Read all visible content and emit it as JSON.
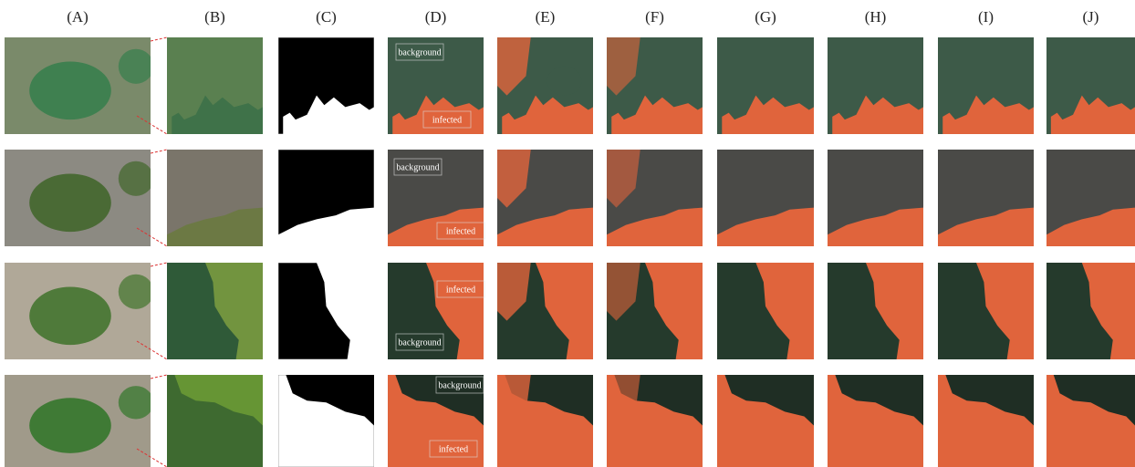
{
  "columns": [
    "(A)",
    "(B)",
    "(C)",
    "(D)",
    "(E)",
    "(F)",
    "(G)",
    "(H)",
    "(I)",
    "(J)"
  ],
  "rows": [
    {
      "annotations": [
        "background",
        "infected"
      ]
    },
    {
      "annotations": [
        "background",
        "infected"
      ]
    },
    {
      "annotations": [
        "infected",
        "background"
      ]
    },
    {
      "annotations": [
        "background",
        "infected"
      ]
    }
  ]
}
